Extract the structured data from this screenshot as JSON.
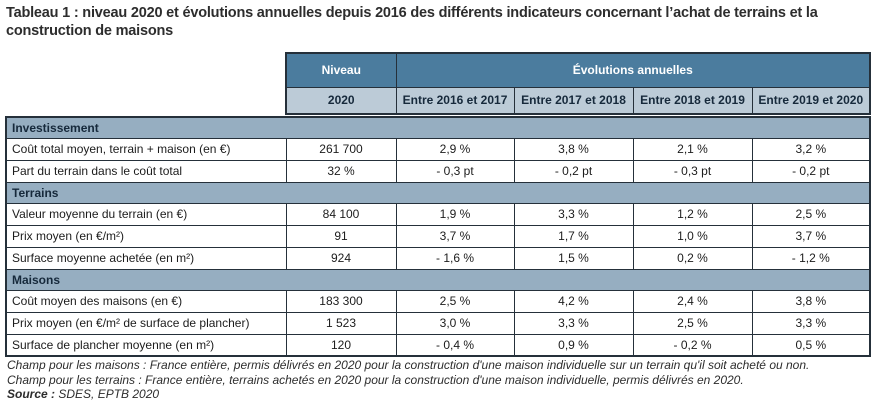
{
  "title": "Tableau 1 : niveau 2020 et évolutions annuelles depuis 2016 des différents indicateurs concernant l’achat de terrains et la construction de maisons",
  "table": {
    "header": {
      "niveau": "Niveau",
      "evolutions": "Évolutions annuelles",
      "year": "2020",
      "periods": [
        "Entre 2016 et 2017",
        "Entre 2017 et 2018",
        "Entre 2018 et 2019",
        "Entre 2019 et 2020"
      ]
    },
    "sections": [
      {
        "name": "Investissement",
        "rows": [
          {
            "label": "Coût total moyen, terrain + maison (en €)",
            "niveau": "261 700",
            "values": [
              "2,9 %",
              "3,8 %",
              "2,1 %",
              "3,2 %"
            ]
          },
          {
            "label": "Part du terrain dans le coût total",
            "niveau": "32 %",
            "values": [
              "- 0,3 pt",
              "- 0,2 pt",
              "- 0,3 pt",
              "- 0,2 pt"
            ]
          }
        ]
      },
      {
        "name": "Terrains",
        "rows": [
          {
            "label": "Valeur moyenne du terrain (en €)",
            "niveau": "84 100",
            "values": [
              "1,9 %",
              "3,3 %",
              "1,2 %",
              "2,5 %"
            ]
          },
          {
            "label": "Prix moyen (en €/m²)",
            "niveau": "91",
            "values": [
              "3,7 %",
              "1,7 %",
              "1,0 %",
              "3,7 %"
            ]
          },
          {
            "label": "Surface moyenne achetée (en m²)",
            "niveau": "924",
            "values": [
              "- 1,6 %",
              "1,5 %",
              "0,2 %",
              "- 1,2 %"
            ]
          }
        ]
      },
      {
        "name": "Maisons",
        "rows": [
          {
            "label": "Coût moyen des maisons (en €)",
            "niveau": "183 300",
            "values": [
              "2,5 %",
              "4,2 %",
              "2,4 %",
              "3,8 %"
            ]
          },
          {
            "label": "Prix moyen (en €/m² de surface de plancher)",
            "niveau": "1 523",
            "values": [
              "3,0 %",
              "3,3 %",
              "2,5 %",
              "3,3 %"
            ]
          },
          {
            "label": "Surface de plancher moyenne (en m²)",
            "niveau": "120",
            "values": [
              "- 0,4 %",
              "0,9 %",
              "- 0,2 %",
              "0,5 %"
            ]
          }
        ]
      }
    ]
  },
  "footnotes": {
    "line1": "Champ pour les maisons : France entière, permis délivrés en 2020 pour la construction d'une maison individuelle sur un terrain qu'il soit acheté ou non.",
    "line2": "Champ pour les terrains : France entière, terrains achetés en 2020 pour la construction d'une maison individuelle, permis délivrés en 2020.",
    "source_label": "Source :",
    "source_value": " SDES, EPTB 2020"
  },
  "colors": {
    "header_dark": "#4b7c9e",
    "header_light": "#bccbd7",
    "section_bg": "#96aec1",
    "border": "#25303a"
  }
}
